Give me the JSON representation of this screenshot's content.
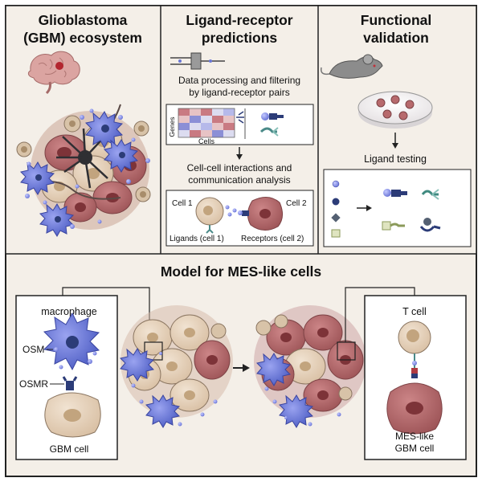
{
  "panels": {
    "ecosystem": {
      "title_line1": "Glioblastoma",
      "title_line2": "(GBM) ecosystem"
    },
    "predictions": {
      "title_line1": "Ligand-receptor",
      "title_line2": "predictions",
      "step1_line1": "Data processing and filtering",
      "step1_line2": "by ligand-receptor pairs",
      "heatmap_row_label": "Genes",
      "heatmap_col_label": "Cells",
      "step2_line1": "Cell-cell interactions and",
      "step2_line2": "communication analysis",
      "cell1_label": "Cell 1",
      "cell2_label": "Cell 2",
      "ligands_label": "Ligands (cell 1)",
      "receptors_label": "Receptors (cell 2)"
    },
    "validation": {
      "title_line1": "Functional",
      "title_line2": "validation",
      "ligand_testing": "Ligand testing"
    },
    "model": {
      "title": "Model for MES-like cells",
      "macrophage": "macrophage",
      "osm": "OSM",
      "osmr": "OSMR",
      "gbm_cell": "GBM cell",
      "t_cell": "T cell",
      "mes_line1": "MES-like",
      "mes_line2": "GBM cell"
    }
  },
  "colors": {
    "panel_bg": "#f4efe8",
    "frame": "#222222",
    "tan_cell": "#e6d2bd",
    "tan_nucleus": "#c2a47e",
    "red_cell": "#b76a6d",
    "red_nucleus": "#7d3338",
    "macrophage": "#6b78d6",
    "ligand_dot": "#8f98e8",
    "receptor": "#2c3c78",
    "brain": "#d89b98",
    "heat_red": "#c97a82",
    "heat_blue": "#8b8fd6"
  }
}
